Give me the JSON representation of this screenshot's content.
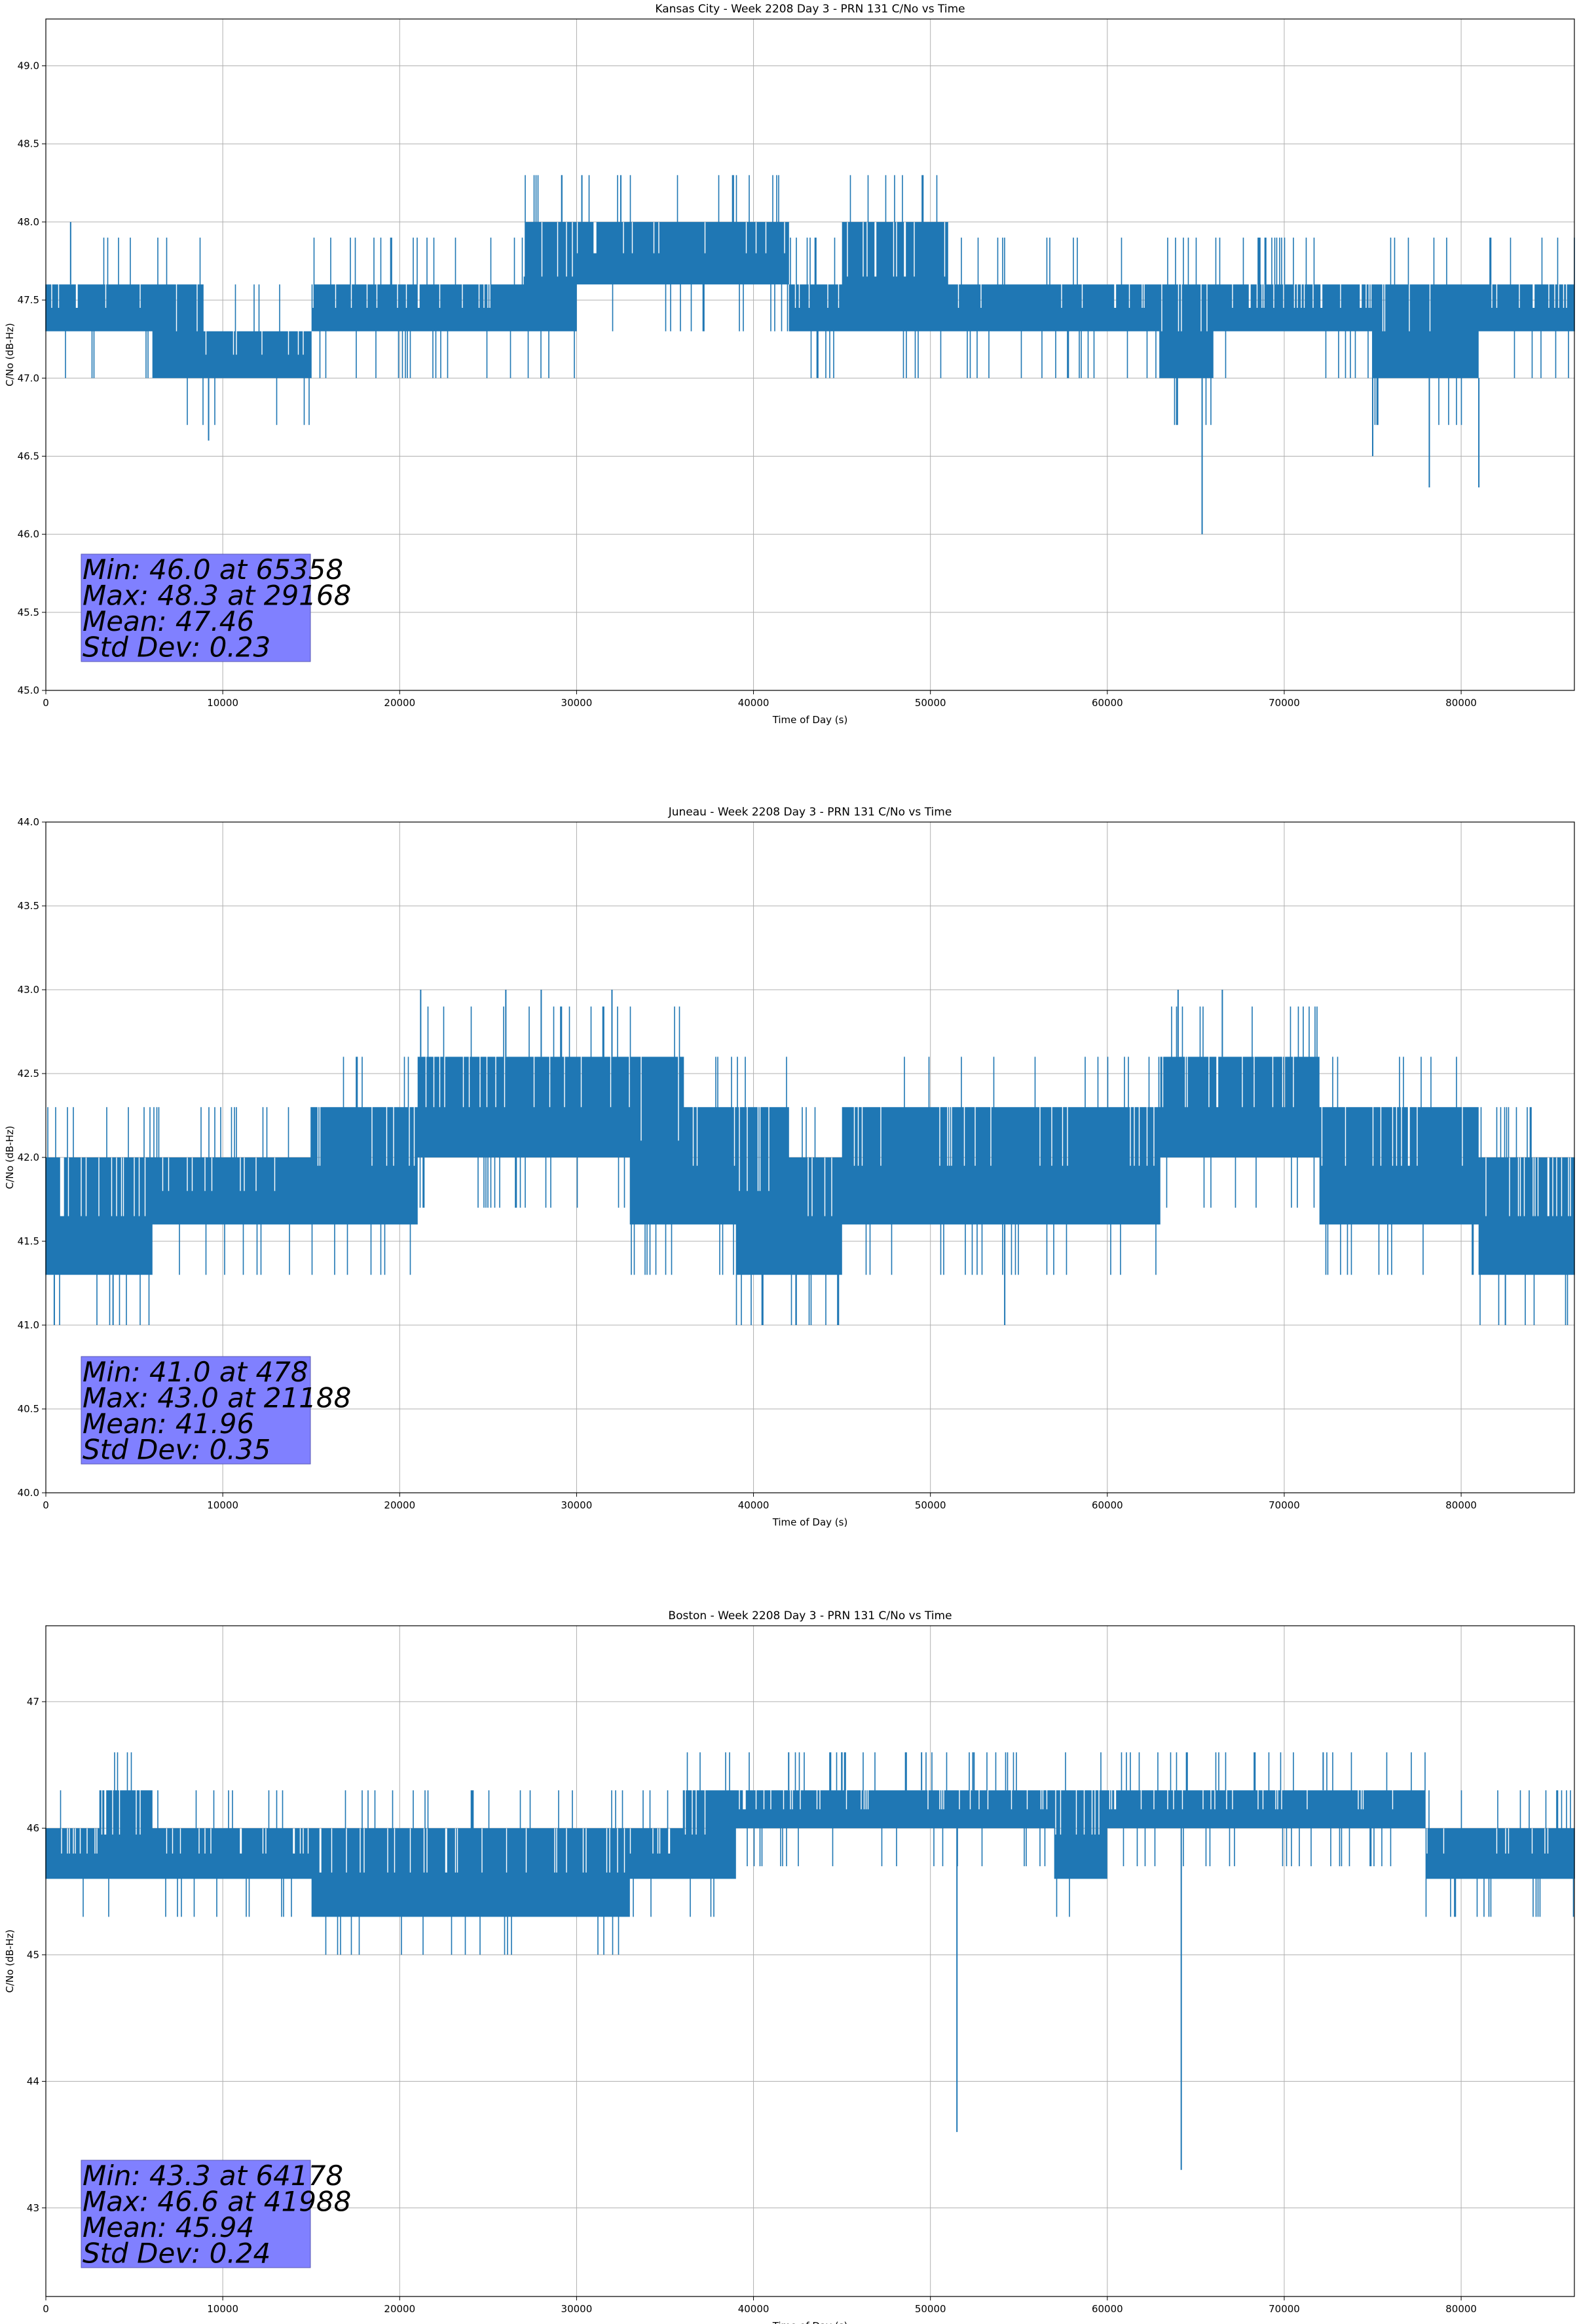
{
  "chart_data": [
    {
      "type": "line",
      "title": "Kansas City - Week 2208 Day 3 - PRN 131 C/No vs Time",
      "xlabel": "Time of Day (s)",
      "ylabel": "C/No (dB-Hz)",
      "xlim": [
        0,
        86400
      ],
      "ylim": [
        45.0,
        49.3
      ],
      "xticks": [
        0,
        10000,
        20000,
        30000,
        40000,
        50000,
        60000,
        70000,
        80000
      ],
      "yticks": [
        45.0,
        45.5,
        46.0,
        46.5,
        47.0,
        47.5,
        48.0,
        48.5,
        49.0
      ],
      "ytick_labels": [
        "45.0",
        "45.5",
        "46.0",
        "46.5",
        "47.0",
        "47.5",
        "48.0",
        "48.5",
        "49.0"
      ],
      "grid": true,
      "series_color": "#1f77b4",
      "series": [
        {
          "x": [
            0,
            3000,
            6000,
            9000,
            12000,
            15000,
            18000,
            21000,
            24000,
            27000,
            30000,
            33000,
            36000,
            39000,
            42000,
            45000,
            48000,
            51000,
            54000,
            57000,
            60000,
            63000,
            66000,
            69000,
            72000,
            75000,
            78000,
            81000,
            84000,
            86400
          ],
          "low": [
            47.3,
            47.3,
            47.0,
            47.0,
            47.0,
            47.3,
            47.3,
            47.3,
            47.3,
            47.3,
            47.6,
            47.6,
            47.6,
            47.6,
            47.3,
            47.3,
            47.3,
            47.3,
            47.3,
            47.3,
            47.3,
            47.0,
            47.3,
            47.3,
            47.3,
            47.0,
            47.0,
            47.3,
            47.3,
            47.3
          ],
          "high": [
            47.6,
            47.6,
            47.6,
            47.3,
            47.3,
            47.6,
            47.6,
            47.6,
            47.6,
            48.0,
            48.0,
            48.0,
            48.0,
            48.0,
            47.6,
            48.0,
            48.0,
            47.6,
            47.6,
            47.6,
            47.6,
            47.6,
            47.6,
            47.6,
            47.6,
            47.6,
            47.6,
            47.6,
            47.6,
            47.6
          ]
        }
      ],
      "spikes": [
        {
          "x": 1400,
          "y": 48.0
        },
        {
          "x": 9200,
          "y": 46.6
        },
        {
          "x": 29168,
          "y": 48.3
        },
        {
          "x": 30300,
          "y": 48.3
        },
        {
          "x": 32500,
          "y": 48.3
        },
        {
          "x": 65358,
          "y": 46.0
        },
        {
          "x": 75000,
          "y": 46.5
        },
        {
          "x": 78200,
          "y": 46.3
        },
        {
          "x": 81000,
          "y": 46.3
        }
      ],
      "stats": [
        "Min: 46.0 at 65358",
        "Max: 48.3 at 29168",
        "Mean: 47.46",
        "Std Dev: 0.23"
      ]
    },
    {
      "type": "line",
      "title": "Juneau - Week 2208 Day 3 - PRN 131 C/No vs Time",
      "xlabel": "Time of Day (s)",
      "ylabel": "C/No (dB-Hz)",
      "xlim": [
        0,
        86400
      ],
      "ylim": [
        40.0,
        44.0
      ],
      "xticks": [
        0,
        10000,
        20000,
        30000,
        40000,
        50000,
        60000,
        70000,
        80000
      ],
      "yticks": [
        40.0,
        40.5,
        41.0,
        41.5,
        42.0,
        42.5,
        43.0,
        43.5,
        44.0
      ],
      "ytick_labels": [
        "40.0",
        "40.5",
        "41.0",
        "41.5",
        "42.0",
        "42.5",
        "43.0",
        "43.5",
        "44.0"
      ],
      "grid": true,
      "series_color": "#1f77b4",
      "series": [
        {
          "x": [
            0,
            3000,
            6000,
            9000,
            12000,
            15000,
            18000,
            21000,
            24000,
            27000,
            30000,
            33000,
            36000,
            39000,
            42000,
            45000,
            48000,
            51000,
            54000,
            57000,
            60000,
            63000,
            66000,
            69000,
            72000,
            75000,
            78000,
            81000,
            84000,
            86400
          ],
          "low": [
            41.3,
            41.3,
            41.6,
            41.6,
            41.6,
            41.6,
            41.6,
            42.0,
            42.0,
            42.0,
            42.0,
            41.6,
            41.6,
            41.3,
            41.3,
            41.6,
            41.6,
            41.6,
            41.6,
            41.6,
            41.6,
            42.0,
            42.0,
            42.0,
            41.6,
            41.6,
            41.6,
            41.3,
            41.3,
            42.0
          ],
          "high": [
            42.0,
            42.0,
            42.0,
            42.0,
            42.0,
            42.3,
            42.3,
            42.6,
            42.6,
            42.6,
            42.6,
            42.6,
            42.3,
            42.3,
            42.0,
            42.3,
            42.3,
            42.3,
            42.3,
            42.3,
            42.3,
            42.6,
            42.6,
            42.6,
            42.3,
            42.3,
            42.3,
            42.0,
            42.0,
            42.3
          ]
        }
      ],
      "spikes": [
        {
          "x": 478,
          "y": 41.0
        },
        {
          "x": 3800,
          "y": 41.0
        },
        {
          "x": 21188,
          "y": 43.0
        },
        {
          "x": 26000,
          "y": 43.0
        },
        {
          "x": 28000,
          "y": 43.0
        },
        {
          "x": 32000,
          "y": 43.0
        },
        {
          "x": 42400,
          "y": 41.0
        },
        {
          "x": 54200,
          "y": 41.0
        },
        {
          "x": 64000,
          "y": 43.0
        },
        {
          "x": 66500,
          "y": 43.0
        },
        {
          "x": 82500,
          "y": 41.0
        }
      ],
      "stats": [
        "Min: 41.0 at 478",
        "Max: 43.0 at 21188",
        "Mean: 41.96",
        "Std Dev: 0.35"
      ]
    },
    {
      "type": "line",
      "title": "Boston - Week 2208 Day 3 - PRN 131 C/No vs Time",
      "xlabel": "Time of Day (s)",
      "ylabel": "C/No (dB-Hz)",
      "xlim": [
        0,
        86400
      ],
      "ylim": [
        42.3,
        47.6
      ],
      "xticks": [
        0,
        10000,
        20000,
        30000,
        40000,
        50000,
        60000,
        70000,
        80000
      ],
      "yticks": [
        43,
        44,
        45,
        46,
        47
      ],
      "ytick_labels": [
        "43",
        "44",
        "45",
        "46",
        "47"
      ],
      "grid": true,
      "series_color": "#1f77b4",
      "series": [
        {
          "x": [
            0,
            3000,
            6000,
            9000,
            12000,
            15000,
            18000,
            21000,
            24000,
            27000,
            30000,
            33000,
            36000,
            39000,
            42000,
            45000,
            48000,
            51000,
            54000,
            57000,
            60000,
            63000,
            66000,
            69000,
            72000,
            75000,
            78000,
            81000,
            84000,
            86400
          ],
          "low": [
            45.6,
            45.6,
            45.6,
            45.6,
            45.6,
            45.3,
            45.3,
            45.3,
            45.3,
            45.3,
            45.3,
            45.6,
            45.6,
            46.0,
            46.0,
            46.0,
            46.0,
            46.0,
            46.0,
            45.6,
            46.0,
            46.0,
            46.0,
            46.0,
            46.0,
            46.0,
            45.6,
            45.6,
            45.6,
            45.6
          ],
          "high": [
            46.0,
            46.3,
            46.0,
            46.0,
            46.0,
            46.0,
            46.0,
            46.0,
            46.0,
            46.0,
            46.0,
            46.0,
            46.3,
            46.3,
            46.3,
            46.3,
            46.3,
            46.3,
            46.3,
            46.3,
            46.3,
            46.3,
            46.3,
            46.3,
            46.3,
            46.3,
            46.0,
            46.0,
            46.0,
            46.0
          ]
        }
      ],
      "spikes": [
        {
          "x": 41988,
          "y": 46.6
        },
        {
          "x": 45000,
          "y": 46.6
        },
        {
          "x": 49500,
          "y": 46.6
        },
        {
          "x": 52400,
          "y": 46.6
        },
        {
          "x": 72200,
          "y": 46.6
        },
        {
          "x": 51500,
          "y": 43.6
        },
        {
          "x": 64178,
          "y": 43.3
        }
      ],
      "stats": [
        "Min: 43.3 at 64178",
        "Max: 46.6 at 41988",
        "Mean: 45.94",
        "Std Dev: 0.24"
      ]
    }
  ]
}
